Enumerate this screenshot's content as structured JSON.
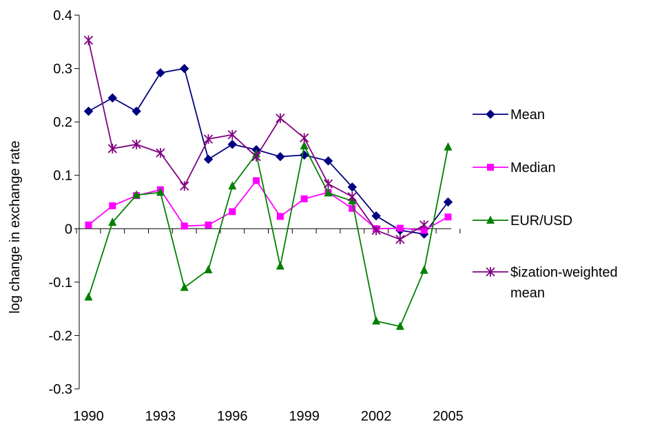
{
  "chart_data": {
    "type": "line",
    "ylabel": "log change in exchange rate",
    "xlabel": "",
    "title": "",
    "ylim": [
      -0.3,
      0.4
    ],
    "yticks": [
      -0.3,
      -0.2,
      -0.1,
      0,
      0.1,
      0.2,
      0.3,
      0.4
    ],
    "ytick_labels": [
      "-0.3",
      "-0.2",
      "-0.1",
      "0",
      "0.1",
      "0.2",
      "0.3",
      "0.4"
    ],
    "x": [
      1990,
      1991,
      1992,
      1993,
      1994,
      1995,
      1996,
      1997,
      1998,
      1999,
      2000,
      2001,
      2002,
      2003,
      2004,
      2005
    ],
    "xtick_labels": [
      "1990",
      "1993",
      "1996",
      "1999",
      "2002",
      "2005"
    ],
    "legend_position": "right",
    "grid": false,
    "series": [
      {
        "name": "Mean",
        "color": "#000080",
        "marker": "diamond",
        "values": [
          0.22,
          0.245,
          0.22,
          0.292,
          0.3,
          0.13,
          0.158,
          0.148,
          0.135,
          0.138,
          0.127,
          0.078,
          0.024,
          -0.003,
          -0.01,
          0.05
        ]
      },
      {
        "name": "Median",
        "color": "#FF00FF",
        "marker": "square",
        "values": [
          0.007,
          0.043,
          0.062,
          0.073,
          0.005,
          0.007,
          0.032,
          0.09,
          0.023,
          0.056,
          0.068,
          0.038,
          0.0,
          0.001,
          -0.003,
          0.022
        ]
      },
      {
        "name": "EUR/USD",
        "color": "#008000",
        "marker": "triangle",
        "values": [
          -0.128,
          0.012,
          0.063,
          0.068,
          -0.11,
          -0.077,
          0.08,
          0.14,
          -0.07,
          0.155,
          0.067,
          0.052,
          -0.173,
          -0.183,
          -0.078,
          0.153
        ]
      },
      {
        "name": "$ization-weighted mean",
        "name_lines": [
          "$ization-weighted",
          "mean"
        ],
        "color": "#800080",
        "marker": "star",
        "values": [
          0.353,
          0.15,
          0.158,
          0.142,
          0.08,
          0.168,
          0.176,
          0.135,
          0.207,
          0.17,
          0.084,
          0.06,
          -0.003,
          -0.02,
          0.007,
          null
        ]
      }
    ]
  }
}
